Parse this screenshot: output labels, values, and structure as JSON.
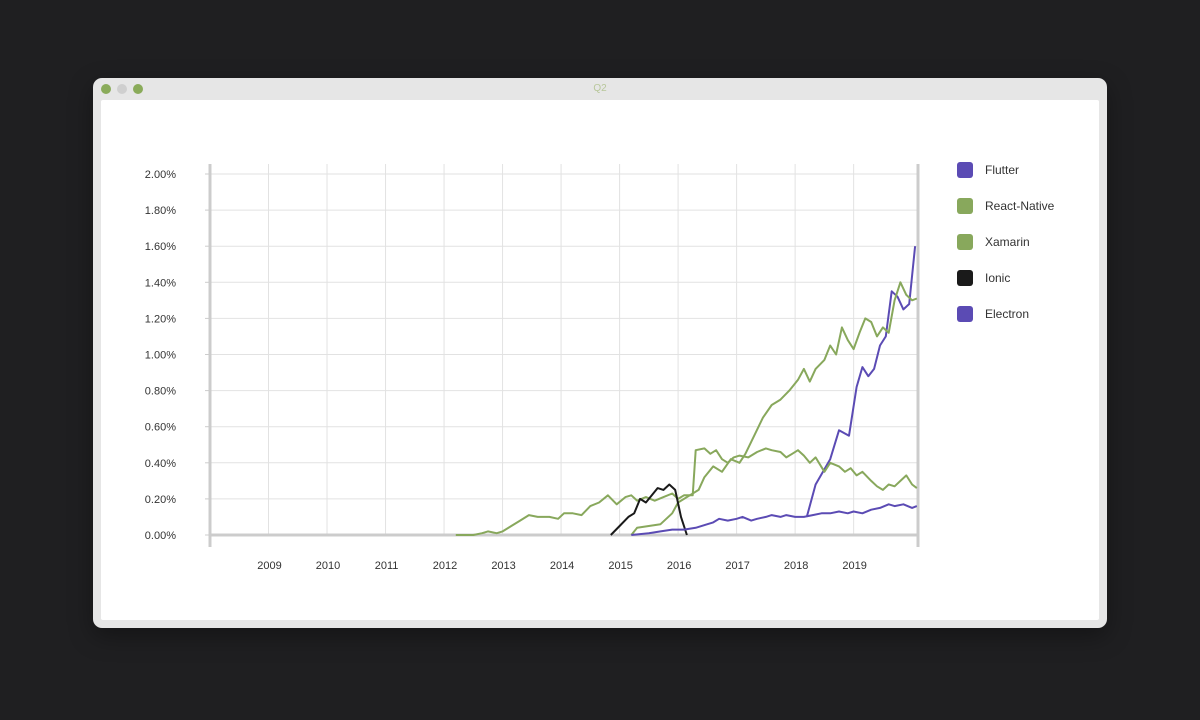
{
  "window": {
    "title": "Q2"
  },
  "colors": {
    "purple": "#5b4bb4",
    "green": "#88a85c",
    "black": "#1a1a1a",
    "grid": "#e2e2e2",
    "axis": "#cccccc"
  },
  "chart_data": {
    "type": "line",
    "title": "",
    "xlabel": "",
    "ylabel": "",
    "xlim": [
      2008,
      2020.1
    ],
    "ylim": [
      0,
      2.0
    ],
    "x_ticks": [
      "2009",
      "2010",
      "2011",
      "2012",
      "2013",
      "2014",
      "2015",
      "2016",
      "2017",
      "2018",
      "2019"
    ],
    "y_ticks": [
      "0.00%",
      "0.20%",
      "0.40%",
      "0.60%",
      "0.80%",
      "1.00%",
      "1.20%",
      "1.40%",
      "1.60%",
      "1.80%",
      "2.00%"
    ],
    "grid": true,
    "legend_position": "right",
    "series": [
      {
        "name": "Flutter",
        "color": "#5b4bb4",
        "points": [
          [
            2018.2,
            0.1
          ],
          [
            2018.35,
            0.28
          ],
          [
            2018.6,
            0.42
          ],
          [
            2018.75,
            0.58
          ],
          [
            2018.92,
            0.55
          ],
          [
            2019.05,
            0.82
          ],
          [
            2019.15,
            0.93
          ],
          [
            2019.25,
            0.88
          ],
          [
            2019.35,
            0.92
          ],
          [
            2019.45,
            1.05
          ],
          [
            2019.55,
            1.1
          ],
          [
            2019.65,
            1.35
          ],
          [
            2019.75,
            1.32
          ],
          [
            2019.85,
            1.25
          ],
          [
            2019.95,
            1.28
          ],
          [
            2020.05,
            1.6
          ]
        ]
      },
      {
        "name": "React-Native",
        "color": "#88a85c",
        "points": [
          [
            2015.2,
            0.0
          ],
          [
            2015.3,
            0.04
          ],
          [
            2015.5,
            0.05
          ],
          [
            2015.7,
            0.06
          ],
          [
            2015.9,
            0.12
          ],
          [
            2016.0,
            0.18
          ],
          [
            2016.2,
            0.22
          ],
          [
            2016.35,
            0.25
          ],
          [
            2016.45,
            0.32
          ],
          [
            2016.6,
            0.38
          ],
          [
            2016.75,
            0.35
          ],
          [
            2016.9,
            0.42
          ],
          [
            2017.05,
            0.4
          ],
          [
            2017.15,
            0.45
          ],
          [
            2017.3,
            0.55
          ],
          [
            2017.45,
            0.65
          ],
          [
            2017.6,
            0.72
          ],
          [
            2017.75,
            0.75
          ],
          [
            2017.9,
            0.8
          ],
          [
            2018.05,
            0.86
          ],
          [
            2018.15,
            0.92
          ],
          [
            2018.25,
            0.85
          ],
          [
            2018.35,
            0.92
          ],
          [
            2018.5,
            0.97
          ],
          [
            2018.6,
            1.05
          ],
          [
            2018.7,
            1.0
          ],
          [
            2018.8,
            1.15
          ],
          [
            2018.9,
            1.08
          ],
          [
            2019.0,
            1.03
          ],
          [
            2019.1,
            1.12
          ],
          [
            2019.2,
            1.2
          ],
          [
            2019.3,
            1.18
          ],
          [
            2019.4,
            1.1
          ],
          [
            2019.5,
            1.15
          ],
          [
            2019.6,
            1.12
          ],
          [
            2019.7,
            1.3
          ],
          [
            2019.8,
            1.4
          ],
          [
            2019.9,
            1.33
          ],
          [
            2020.0,
            1.3
          ],
          [
            2020.08,
            1.31
          ]
        ]
      },
      {
        "name": "Xamarin",
        "color": "#88a85c",
        "points": [
          [
            2012.2,
            0.0
          ],
          [
            2012.5,
            0.0
          ],
          [
            2012.65,
            0.01
          ],
          [
            2012.75,
            0.02
          ],
          [
            2012.9,
            0.01
          ],
          [
            2013.0,
            0.02
          ],
          [
            2013.15,
            0.05
          ],
          [
            2013.3,
            0.08
          ],
          [
            2013.45,
            0.11
          ],
          [
            2013.6,
            0.1
          ],
          [
            2013.8,
            0.1
          ],
          [
            2013.95,
            0.09
          ],
          [
            2014.05,
            0.12
          ],
          [
            2014.2,
            0.12
          ],
          [
            2014.35,
            0.11
          ],
          [
            2014.5,
            0.16
          ],
          [
            2014.65,
            0.18
          ],
          [
            2014.8,
            0.22
          ],
          [
            2014.95,
            0.17
          ],
          [
            2015.1,
            0.21
          ],
          [
            2015.2,
            0.22
          ],
          [
            2015.3,
            0.19
          ],
          [
            2015.45,
            0.21
          ],
          [
            2015.6,
            0.19
          ],
          [
            2015.75,
            0.21
          ],
          [
            2015.9,
            0.23
          ],
          [
            2016.0,
            0.2
          ],
          [
            2016.1,
            0.22
          ],
          [
            2016.25,
            0.22
          ],
          [
            2016.3,
            0.47
          ],
          [
            2016.45,
            0.48
          ],
          [
            2016.55,
            0.45
          ],
          [
            2016.65,
            0.47
          ],
          [
            2016.75,
            0.42
          ],
          [
            2016.85,
            0.4
          ],
          [
            2016.95,
            0.43
          ],
          [
            2017.05,
            0.44
          ],
          [
            2017.2,
            0.43
          ],
          [
            2017.35,
            0.46
          ],
          [
            2017.5,
            0.48
          ],
          [
            2017.6,
            0.47
          ],
          [
            2017.75,
            0.46
          ],
          [
            2017.85,
            0.43
          ],
          [
            2017.95,
            0.45
          ],
          [
            2018.05,
            0.47
          ],
          [
            2018.15,
            0.44
          ],
          [
            2018.25,
            0.4
          ],
          [
            2018.35,
            0.43
          ],
          [
            2018.5,
            0.35
          ],
          [
            2018.6,
            0.4
          ],
          [
            2018.75,
            0.38
          ],
          [
            2018.85,
            0.35
          ],
          [
            2018.95,
            0.37
          ],
          [
            2019.05,
            0.33
          ],
          [
            2019.15,
            0.35
          ],
          [
            2019.3,
            0.3
          ],
          [
            2019.4,
            0.27
          ],
          [
            2019.5,
            0.25
          ],
          [
            2019.6,
            0.28
          ],
          [
            2019.7,
            0.27
          ],
          [
            2019.8,
            0.3
          ],
          [
            2019.9,
            0.33
          ],
          [
            2020.0,
            0.28
          ],
          [
            2020.08,
            0.26
          ]
        ]
      },
      {
        "name": "Ionic",
        "color": "#1a1a1a",
        "points": [
          [
            2014.85,
            0.0
          ],
          [
            2015.0,
            0.05
          ],
          [
            2015.15,
            0.1
          ],
          [
            2015.25,
            0.12
          ],
          [
            2015.35,
            0.2
          ],
          [
            2015.45,
            0.18
          ],
          [
            2015.55,
            0.22
          ],
          [
            2015.65,
            0.26
          ],
          [
            2015.75,
            0.25
          ],
          [
            2015.85,
            0.28
          ],
          [
            2015.95,
            0.25
          ],
          [
            2016.05,
            0.1
          ],
          [
            2016.15,
            0.0
          ]
        ]
      },
      {
        "name": "Electron",
        "color": "#5b4bb4",
        "points": [
          [
            2015.2,
            0.0
          ],
          [
            2015.5,
            0.01
          ],
          [
            2015.7,
            0.02
          ],
          [
            2015.9,
            0.03
          ],
          [
            2016.1,
            0.03
          ],
          [
            2016.3,
            0.04
          ],
          [
            2016.5,
            0.06
          ],
          [
            2016.6,
            0.07
          ],
          [
            2016.7,
            0.09
          ],
          [
            2016.85,
            0.08
          ],
          [
            2017.0,
            0.09
          ],
          [
            2017.1,
            0.1
          ],
          [
            2017.25,
            0.08
          ],
          [
            2017.35,
            0.09
          ],
          [
            2017.5,
            0.1
          ],
          [
            2017.6,
            0.11
          ],
          [
            2017.75,
            0.1
          ],
          [
            2017.85,
            0.11
          ],
          [
            2018.0,
            0.1
          ],
          [
            2018.15,
            0.1
          ],
          [
            2018.3,
            0.11
          ],
          [
            2018.45,
            0.12
          ],
          [
            2018.6,
            0.12
          ],
          [
            2018.75,
            0.13
          ],
          [
            2018.9,
            0.12
          ],
          [
            2019.0,
            0.13
          ],
          [
            2019.15,
            0.12
          ],
          [
            2019.3,
            0.14
          ],
          [
            2019.45,
            0.15
          ],
          [
            2019.6,
            0.17
          ],
          [
            2019.7,
            0.16
          ],
          [
            2019.85,
            0.17
          ],
          [
            2020.0,
            0.15
          ],
          [
            2020.08,
            0.16
          ]
        ]
      }
    ]
  }
}
